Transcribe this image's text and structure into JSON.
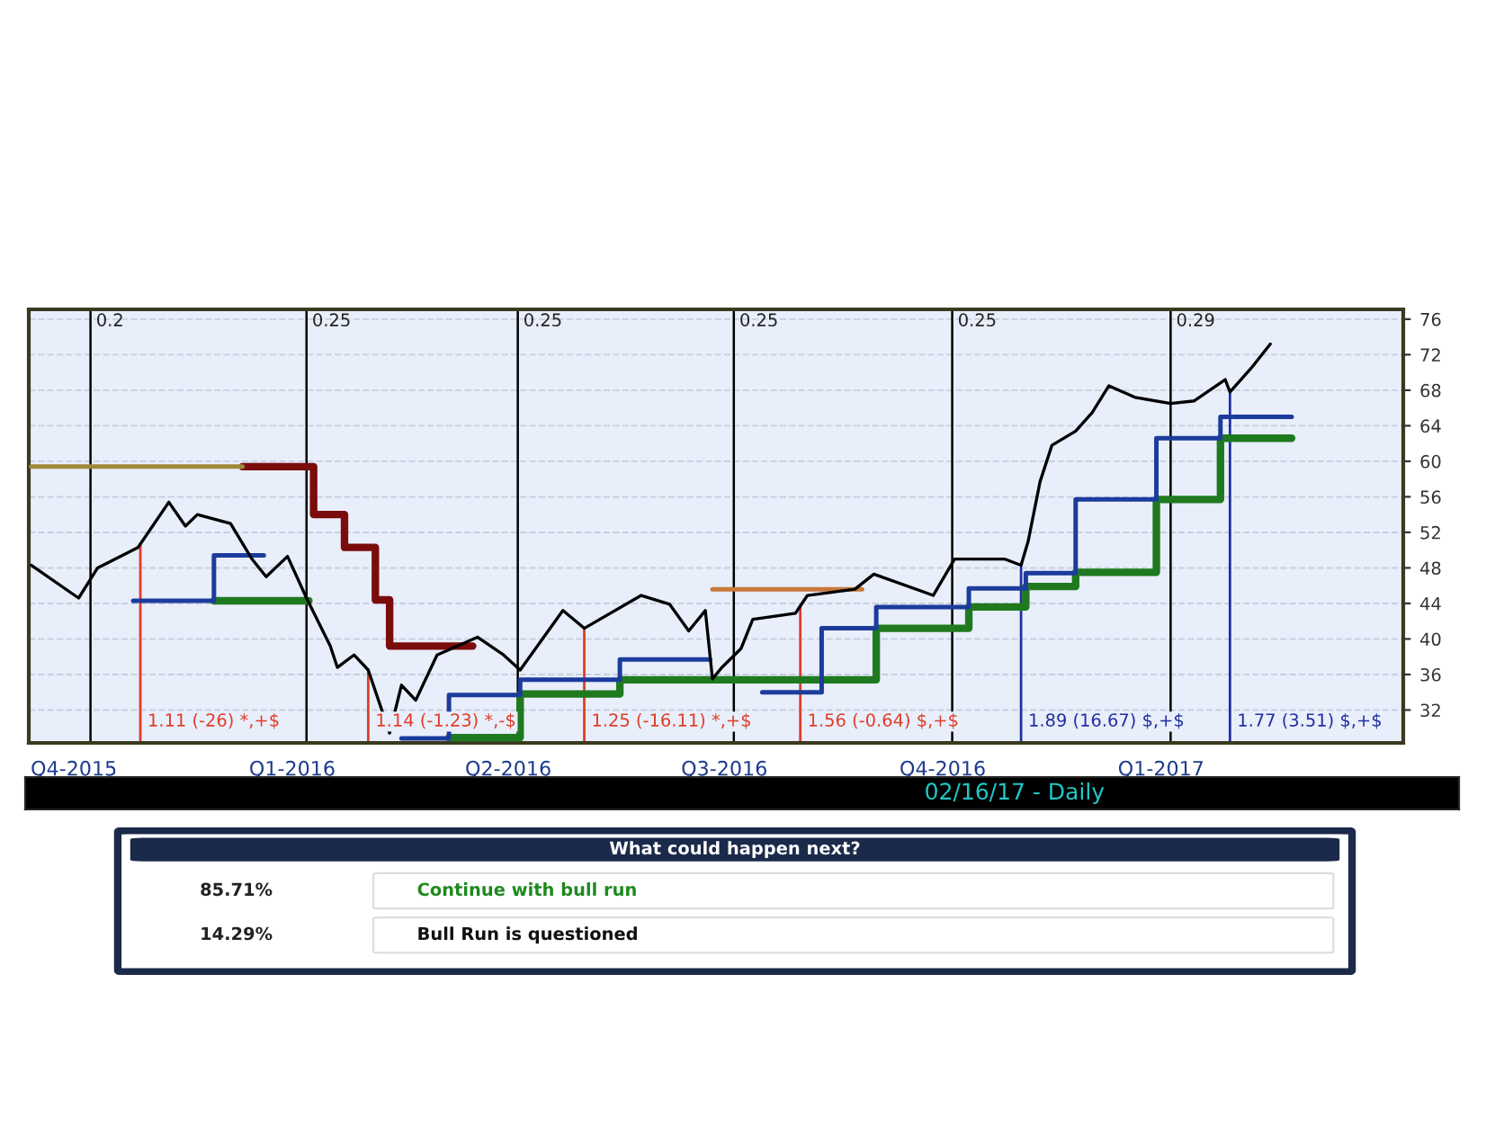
{
  "chart_data": [
    {
      "type": "line",
      "x2label": null,
      "series": [
        {
          "type": "line",
          "color": "#000000",
          "x": [
            "2015-09-13",
            "2015-10-03",
            "2015-10-11",
            "2015-10-28",
            "2015-11-10",
            "2015-11-17",
            "2015-11-22",
            "2015-12-06",
            "2015-12-15",
            "2015-12-21",
            "2015-12-30",
            "2016-01-07",
            "2016-01-17",
            "2016-01-20",
            "2016-01-27",
            "2016-02-02",
            "2016-02-11",
            "2016-02-16",
            "2016-02-22",
            "2016-03-02",
            "2016-03-19",
            "2016-03-30",
            "2016-04-06",
            "2016-04-24",
            "2016-05-03",
            "2016-05-27",
            "2016-06-08",
            "2016-06-16",
            "2016-06-23",
            "2016-06-26",
            "2016-06-30",
            "2016-07-08",
            "2016-07-13",
            "2016-07-31",
            "2016-08-05",
            "2016-08-25",
            "2016-09-02",
            "2016-09-27",
            "2016-10-06",
            "2016-10-27",
            "2016-11-03",
            "2016-11-06",
            "2016-11-11",
            "2016-11-16",
            "2016-11-26",
            "2016-12-03",
            "2016-12-10",
            "2016-12-21",
            "2017-01-05",
            "2017-01-15",
            "2017-01-28",
            "2017-01-30",
            "2017-02-08",
            "2017-02-16"
          ],
          "values": [
            48.3,
            44.6,
            48.0,
            50.3,
            55.4,
            52.7,
            54.0,
            53.0,
            49.0,
            47.0,
            49.3,
            44.6,
            39.2,
            36.8,
            38.2,
            36.5,
            29.4,
            34.8,
            33.1,
            38.2,
            40.2,
            38.2,
            36.5,
            43.2,
            41.2,
            44.9,
            43.9,
            40.9,
            43.2,
            35.5,
            36.8,
            38.9,
            42.2,
            42.9,
            44.9,
            45.6,
            47.3,
            44.9,
            49.0,
            49.0,
            48.3,
            51.0,
            57.7,
            61.8,
            63.4,
            65.5,
            68.5,
            67.2,
            66.5,
            66.8,
            69.2,
            67.8,
            70.5,
            73.2
          ]
        },
        {
          "type": "step",
          "color": "#1f7a1f",
          "x": [
            "2015-11-29",
            "2016-01-08",
            "2016-03-07",
            "2016-04-06",
            "2016-05-18",
            "2016-09-03",
            "2016-10-12",
            "2016-11-05",
            "2016-11-26",
            "2016-12-30",
            "2017-01-26",
            "2017-02-25"
          ],
          "values": [
            44.3,
            null,
            28.9,
            33.8,
            35.4,
            41.2,
            43.6,
            45.9,
            47.5,
            55.7,
            62.6,
            62.6
          ]
        },
        {
          "type": "step",
          "color": "#1c3c9c",
          "x": [
            "2015-10-26",
            "2015-11-29",
            "2015-12-20",
            "2016-02-16",
            "2016-03-07",
            "2016-04-06",
            "2016-05-18",
            "2016-06-25",
            "2016-07-17",
            "2016-08-11",
            "2016-09-03",
            "2016-10-12",
            "2016-11-05",
            "2016-11-26",
            "2016-12-30",
            "2017-01-26",
            "2017-02-25"
          ],
          "values": [
            44.3,
            49.4,
            null,
            28.8,
            33.7,
            35.4,
            37.7,
            null,
            34.0,
            41.2,
            43.6,
            45.7,
            47.4,
            55.7,
            62.6,
            65.0,
            65.0
          ]
        },
        {
          "type": "step",
          "color": "#7a0c0c",
          "x": [
            "2015-12-11",
            "2016-01-10",
            "2016-01-23",
            "2016-02-05",
            "2016-02-11",
            "2016-03-17"
          ],
          "values": [
            59.4,
            54.0,
            50.3,
            44.4,
            39.2,
            39.2
          ]
        },
        {
          "type": "step",
          "color": "#a08a3a",
          "x": [
            "2015-09-13",
            "2015-12-11"
          ],
          "values": [
            59.4,
            59.4
          ]
        },
        {
          "type": "step",
          "color": "#c8783a",
          "x": [
            "2016-06-26",
            "2016-08-28"
          ],
          "values": [
            45.6,
            45.6
          ]
        }
      ],
      "ref_lines": [
        {
          "axis": "x",
          "value": "2015-10-08",
          "label": "0.2",
          "color": "#000000"
        },
        {
          "axis": "x",
          "value": "2016-01-07",
          "label": "0.25",
          "color": "#000000"
        },
        {
          "axis": "x",
          "value": "2016-04-05",
          "label": "0.25",
          "color": "#000000"
        },
        {
          "axis": "x",
          "value": "2016-07-05",
          "label": "0.25",
          "color": "#000000"
        },
        {
          "axis": "x",
          "value": "2016-10-05",
          "label": "0.25",
          "color": "#000000"
        },
        {
          "axis": "x",
          "value": "2017-01-05",
          "label": "0.29",
          "color": "#000000"
        },
        {
          "axis": "x",
          "value": "2015-10-29",
          "label": "1.11 (-26) *,+$",
          "color": "#e03c28"
        },
        {
          "axis": "x",
          "value": "2016-02-02",
          "label": "1.14 (-1.23) *,-$",
          "color": "#e03c28"
        },
        {
          "axis": "x",
          "value": "2016-05-03",
          "label": "1.25 (-16.11) *,+$",
          "color": "#e03c28"
        },
        {
          "axis": "x",
          "value": "2016-08-02",
          "label": "1.56 (-0.64) $,+$",
          "color": "#e03c28"
        },
        {
          "axis": "x",
          "value": "2016-11-03",
          "label": "1.89 (16.67) $,+$",
          "color": "#2030a0"
        },
        {
          "axis": "x",
          "value": "2017-01-30",
          "label": "1.77 (3.51) $,+$",
          "color": "#2030a0"
        }
      ],
      "xlim": [
        "2015-09-12",
        "2017-04-13"
      ],
      "xticks": [
        {
          "value": "2015-10-01",
          "label": "Q4-2015"
        },
        {
          "value": "2016-01-01",
          "label": "Q1-2016"
        },
        {
          "value": "2016-04-01",
          "label": "Q2-2016"
        },
        {
          "value": "2016-07-01",
          "label": "Q3-2016"
        },
        {
          "value": "2016-10-01",
          "label": "Q4-2016"
        },
        {
          "value": "2017-01-01",
          "label": "Q1-2017"
        }
      ],
      "ylim": [
        28.3,
        77.1
      ],
      "yticks": [
        76,
        72,
        68,
        64,
        60,
        56,
        52,
        48,
        44,
        40,
        36,
        32
      ],
      "grid": "y",
      "annotations": [
        "02/16/17 - Daily"
      ]
    },
    {
      "type": "other",
      "title": "What could happen next?",
      "annotations": [
        "85.71%",
        "Continue with bull run",
        "14.29%",
        "Bull Run is questioned"
      ]
    }
  ]
}
